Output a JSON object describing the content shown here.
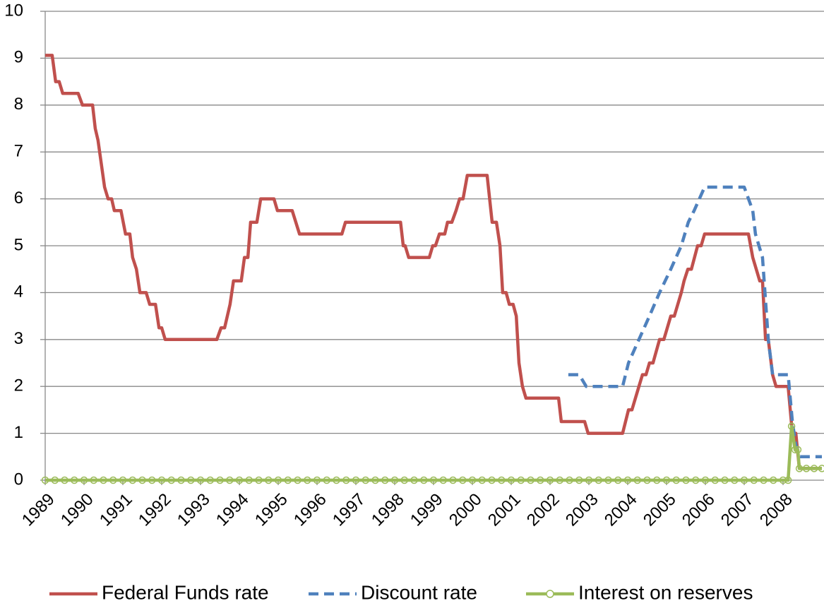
{
  "chart_data": {
    "type": "line",
    "xlim": [
      1989,
      2009
    ],
    "xticks": [
      1989,
      1990,
      1991,
      1992,
      1993,
      1994,
      1995,
      1996,
      1997,
      1998,
      1999,
      2000,
      2001,
      2002,
      2003,
      2004,
      2005,
      2006,
      2007,
      2008
    ],
    "ylim": [
      0,
      10
    ],
    "yticks": [
      0,
      1,
      2,
      3,
      4,
      5,
      6,
      7,
      8,
      9,
      10
    ],
    "grid": true,
    "legend": "bottom",
    "series": [
      {
        "name": "Federal Funds rate",
        "color": "#c0504d",
        "style": "solid",
        "x": [
          1989.0,
          1989.18,
          1989.27,
          1989.36,
          1989.45,
          1989.85,
          1989.96,
          1990.22,
          1990.29,
          1990.36,
          1990.53,
          1990.62,
          1990.71,
          1990.78,
          1990.95,
          1991.07,
          1991.18,
          1991.25,
          1991.35,
          1991.44,
          1991.6,
          1991.69,
          1991.84,
          1991.93,
          1992.0,
          1992.09,
          1993.42,
          1993.53,
          1993.62,
          1993.76,
          1993.85,
          1994.05,
          1994.13,
          1994.22,
          1994.29,
          1994.45,
          1994.55,
          1994.89,
          1994.98,
          1995.36,
          1995.55,
          1996.64,
          1996.73,
          1998.15,
          1998.22,
          1998.27,
          1998.36,
          1998.89,
          1998.98,
          1999.05,
          1999.15,
          1999.29,
          1999.36,
          1999.47,
          1999.58,
          1999.67,
          1999.76,
          1999.87,
          2000.38,
          2000.51,
          2000.62,
          2000.71,
          2000.78,
          2000.87,
          2000.95,
          2001.05,
          2001.13,
          2001.2,
          2001.29,
          2001.38,
          2002.22,
          2002.29,
          2002.89,
          2002.98,
          2003.87,
          2004.02,
          2004.11,
          2004.29,
          2004.38,
          2004.47,
          2004.56,
          2004.65,
          2004.82,
          2004.93,
          2005.11,
          2005.2,
          2005.38,
          2005.45,
          2005.55,
          2005.64,
          2005.8,
          2005.89,
          2005.98,
          2007.11,
          2007.22,
          2007.4,
          2007.47,
          2007.55,
          2007.62,
          2007.73,
          2007.82,
          2008.13,
          2008.24,
          2008.33,
          2008.42,
          2009.0
        ],
        "values": [
          9.06,
          9.06,
          8.5,
          8.5,
          8.25,
          8.25,
          8.0,
          8.0,
          7.5,
          7.25,
          6.25,
          6.0,
          6.0,
          5.75,
          5.75,
          5.25,
          5.25,
          4.75,
          4.5,
          4.0,
          4.0,
          3.75,
          3.75,
          3.25,
          3.25,
          3.0,
          3.0,
          3.25,
          3.25,
          3.75,
          4.25,
          4.25,
          4.75,
          4.75,
          5.5,
          5.5,
          6.0,
          6.0,
          5.75,
          5.75,
          5.25,
          5.25,
          5.5,
          5.5,
          5.0,
          5.0,
          4.75,
          4.75,
          5.0,
          5.0,
          5.25,
          5.25,
          5.5,
          5.5,
          5.75,
          6.0,
          6.0,
          6.5,
          6.5,
          5.5,
          5.5,
          5.0,
          4.0,
          4.0,
          3.75,
          3.75,
          3.5,
          2.5,
          2.0,
          1.75,
          1.75,
          1.25,
          1.25,
          1.0,
          1.0,
          1.5,
          1.5,
          2.0,
          2.25,
          2.25,
          2.5,
          2.5,
          3.0,
          3.0,
          3.5,
          3.5,
          4.0,
          4.25,
          4.5,
          4.5,
          5.0,
          5.0,
          5.25,
          5.25,
          4.75,
          4.25,
          4.25,
          3.0,
          3.0,
          2.25,
          2.0,
          2.0,
          1.0,
          1.0,
          0.25,
          0.25
        ]
      },
      {
        "name": "Discount rate",
        "color": "#4f81bd",
        "style": "dashed",
        "x": [
          2002.47,
          2002.75,
          2002.93,
          2003.87,
          2004.02,
          2004.29,
          2004.56,
          2004.82,
          2005.11,
          2005.38,
          2005.56,
          2005.71,
          2005.98,
          2007.0,
          2007.22,
          2007.29,
          2007.47,
          2007.62,
          2007.73,
          2008.13,
          2008.24,
          2008.33,
          2008.44,
          2009.0
        ],
        "values": [
          2.25,
          2.25,
          2.0,
          2.0,
          2.5,
          3.0,
          3.5,
          4.0,
          4.5,
          5.0,
          5.5,
          5.75,
          6.25,
          6.25,
          5.75,
          5.25,
          4.75,
          3.0,
          2.25,
          2.25,
          1.25,
          0.75,
          0.5,
          0.5
        ]
      },
      {
        "name": "Interest on reserves",
        "color": "#9bbb59",
        "style": "marker",
        "x": [
          1989.0,
          1989.25,
          1989.5,
          1989.75,
          1990.0,
          1990.25,
          1990.5,
          1990.75,
          1991.0,
          1991.25,
          1991.5,
          1991.75,
          1992.0,
          1992.25,
          1992.5,
          1992.75,
          1993.0,
          1993.25,
          1993.5,
          1993.75,
          1994.0,
          1994.25,
          1994.5,
          1994.75,
          1995.0,
          1995.25,
          1995.5,
          1995.75,
          1996.0,
          1996.25,
          1996.5,
          1996.75,
          1997.0,
          1997.25,
          1997.5,
          1997.75,
          1998.0,
          1998.25,
          1998.5,
          1998.75,
          1999.0,
          1999.25,
          1999.5,
          1999.75,
          2000.0,
          2000.25,
          2000.5,
          2000.75,
          2001.0,
          2001.25,
          2001.5,
          2001.75,
          2002.0,
          2002.25,
          2002.5,
          2002.75,
          2003.0,
          2003.25,
          2003.5,
          2003.75,
          2004.0,
          2004.25,
          2004.5,
          2004.75,
          2005.0,
          2005.25,
          2005.5,
          2005.75,
          2006.0,
          2006.25,
          2006.5,
          2006.75,
          2007.0,
          2007.25,
          2007.5,
          2007.75,
          2008.0,
          2008.13,
          2008.22,
          2008.31,
          2008.38,
          2008.42,
          2008.6,
          2008.8,
          2009.0
        ],
        "values": [
          0,
          0,
          0,
          0,
          0,
          0,
          0,
          0,
          0,
          0,
          0,
          0,
          0,
          0,
          0,
          0,
          0,
          0,
          0,
          0,
          0,
          0,
          0,
          0,
          0,
          0,
          0,
          0,
          0,
          0,
          0,
          0,
          0,
          0,
          0,
          0,
          0,
          0,
          0,
          0,
          0,
          0,
          0,
          0,
          0,
          0,
          0,
          0,
          0,
          0,
          0,
          0,
          0,
          0,
          0,
          0,
          0,
          0,
          0,
          0,
          0,
          0,
          0,
          0,
          0,
          0,
          0,
          0,
          0,
          0,
          0,
          0,
          0,
          0,
          0,
          0,
          0,
          0,
          1.15,
          0.65,
          0.65,
          0.25,
          0.25,
          0.25,
          0.25
        ]
      }
    ]
  }
}
